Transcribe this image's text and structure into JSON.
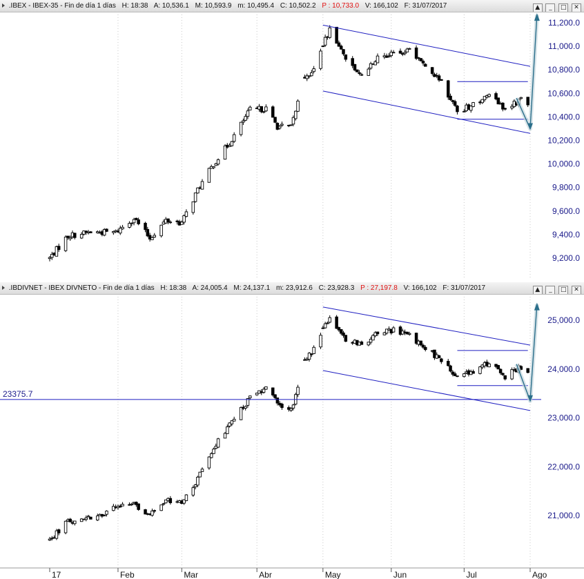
{
  "top_panel": {
    "title_fields": [
      ".IBEX - IBEX-35 - Fin de día 1 días",
      "H: 18:38",
      "A: 10,536.1",
      "M: 10,593.9",
      "m: 10,495.4",
      "C: 10,502.2"
    ],
    "title_red": "P : 10,733.0",
    "title_tail": [
      "V: 166,102",
      "F: 31/07/2017"
    ],
    "window_buttons": [
      "▲",
      "_",
      "□",
      "✕"
    ]
  },
  "bottom_panel": {
    "title_fields": [
      ".IBDIVNET - IBEX DIVNETO - Fin de día 1 días",
      "H: 18:38",
      "A: 24,005.4",
      "M: 24,137.1",
      "m: 23,912.6",
      "C: 23,928.3"
    ],
    "title_red": "P : 27,197.8",
    "title_tail": [
      "V: 166,102",
      "F: 31/07/2017"
    ],
    "window_buttons": [
      "▲",
      "_",
      "□",
      "✕"
    ]
  },
  "x_axis": {
    "labels": [
      {
        "text": "17",
        "date": "2017-01-02"
      },
      {
        "text": "Feb",
        "date": "2017-02-01"
      },
      {
        "text": "Mar",
        "date": "2017-03-01"
      },
      {
        "text": "Abr",
        "date": "2017-04-03"
      },
      {
        "text": "May",
        "date": "2017-05-02"
      },
      {
        "text": "Jun",
        "date": "2017-06-01"
      },
      {
        "text": "Jul",
        "date": "2017-07-03"
      },
      {
        "text": "Ago",
        "date": "2017-08-01"
      }
    ]
  },
  "colors": {
    "candle": "#000000",
    "channel": "#1c1cc0",
    "arrow": "#2a6e8a",
    "axis_text": "#1a1a8a",
    "grid": "#c8c8c8",
    "title_red": "#e01010"
  },
  "chart_data": [
    {
      "type": "candlestick",
      "symbol": ".IBEX",
      "name": "IBEX-35",
      "ylim": [
        9100,
        11300
      ],
      "yticks": [
        9200,
        9400,
        9600,
        9800,
        10000,
        10200,
        10400,
        10600,
        10800,
        11000,
        11200
      ],
      "ytick_labels": [
        "9,200.0",
        "9,400.0",
        "9,600.0",
        "9,800.0",
        "10,000.0",
        "10,200.0",
        "10,400.0",
        "10,600.0",
        "10,800.0",
        "11,000.0",
        "11,200.0"
      ],
      "anchors": [
        {
          "date": "2017-01-02",
          "value": 9200
        },
        {
          "date": "2017-01-10",
          "value": 9390
        },
        {
          "date": "2017-01-20",
          "value": 9420
        },
        {
          "date": "2017-01-31",
          "value": 9420
        },
        {
          "date": "2017-02-08",
          "value": 9540
        },
        {
          "date": "2017-02-15",
          "value": 9370
        },
        {
          "date": "2017-02-22",
          "value": 9520
        },
        {
          "date": "2017-03-01",
          "value": 9500
        },
        {
          "date": "2017-03-08",
          "value": 9780
        },
        {
          "date": "2017-03-15",
          "value": 10000
        },
        {
          "date": "2017-03-22",
          "value": 10180
        },
        {
          "date": "2017-03-31",
          "value": 10460
        },
        {
          "date": "2017-04-07",
          "value": 10470
        },
        {
          "date": "2017-04-12",
          "value": 10320
        },
        {
          "date": "2017-04-18",
          "value": 10310
        },
        {
          "date": "2017-04-24",
          "value": 10740
        },
        {
          "date": "2017-04-28",
          "value": 10800
        },
        {
          "date": "2017-05-05",
          "value": 11150
        },
        {
          "date": "2017-05-12",
          "value": 10900
        },
        {
          "date": "2017-05-19",
          "value": 10750
        },
        {
          "date": "2017-05-26",
          "value": 10920
        },
        {
          "date": "2017-06-02",
          "value": 10940
        },
        {
          "date": "2017-06-09",
          "value": 10960
        },
        {
          "date": "2017-06-16",
          "value": 10840
        },
        {
          "date": "2017-06-23",
          "value": 10700
        },
        {
          "date": "2017-06-30",
          "value": 10450
        },
        {
          "date": "2017-07-07",
          "value": 10500
        },
        {
          "date": "2017-07-14",
          "value": 10600
        },
        {
          "date": "2017-07-21",
          "value": 10460
        },
        {
          "date": "2017-07-28",
          "value": 10550
        },
        {
          "date": "2017-07-31",
          "value": 10502
        }
      ],
      "gaps": [
        {
          "from": "2017-04-21",
          "to": "2017-04-24"
        },
        {
          "from": "2017-04-28",
          "to": "2017-05-02"
        }
      ],
      "channel": {
        "upper": [
          [
            "2017-05-02",
            11180
          ],
          [
            "2017-08-01",
            10830
          ]
        ],
        "lower": [
          [
            "2017-05-02",
            10620
          ],
          [
            "2017-08-01",
            10260
          ]
        ]
      },
      "range_box": {
        "top": [
          [
            "2017-06-30",
            10700
          ],
          [
            "2017-07-31",
            10700
          ]
        ],
        "bottom": [
          [
            "2017-06-30",
            10380
          ],
          [
            "2017-07-31",
            10380
          ]
        ]
      },
      "arrow_path": [
        [
          "2017-07-26",
          10560
        ],
        [
          "2017-08-01",
          10300
        ],
        [
          "2017-08-04",
          11270
        ]
      ]
    },
    {
      "type": "candlestick",
      "symbol": ".IBDIVNET",
      "name": "IBEX DIVNETO",
      "ylim": [
        20500,
        25400
      ],
      "yticks": [
        21000,
        22000,
        23000,
        24000,
        25000
      ],
      "ytick_labels": [
        "21,000.0",
        "22,000.0",
        "23,000.0",
        "24,000.0",
        "25,000.0"
      ],
      "hline": {
        "value": 23375.7,
        "label": "23375.7"
      },
      "anchors": [
        {
          "date": "2017-01-02",
          "value": 20500
        },
        {
          "date": "2017-01-10",
          "value": 20900
        },
        {
          "date": "2017-01-20",
          "value": 20950
        },
        {
          "date": "2017-01-31",
          "value": 21150
        },
        {
          "date": "2017-02-08",
          "value": 21250
        },
        {
          "date": "2017-02-15",
          "value": 21000
        },
        {
          "date": "2017-02-22",
          "value": 21300
        },
        {
          "date": "2017-03-01",
          "value": 21250
        },
        {
          "date": "2017-03-08",
          "value": 21750
        },
        {
          "date": "2017-03-15",
          "value": 22400
        },
        {
          "date": "2017-03-22",
          "value": 22850
        },
        {
          "date": "2017-03-31",
          "value": 23400
        },
        {
          "date": "2017-04-07",
          "value": 23600
        },
        {
          "date": "2017-04-12",
          "value": 23300
        },
        {
          "date": "2017-04-18",
          "value": 23150
        },
        {
          "date": "2017-04-24",
          "value": 24150
        },
        {
          "date": "2017-04-28",
          "value": 24400
        },
        {
          "date": "2017-05-05",
          "value": 25100
        },
        {
          "date": "2017-05-12",
          "value": 24600
        },
        {
          "date": "2017-05-19",
          "value": 24500
        },
        {
          "date": "2017-05-26",
          "value": 24750
        },
        {
          "date": "2017-06-02",
          "value": 24800
        },
        {
          "date": "2017-06-09",
          "value": 24700
        },
        {
          "date": "2017-06-16",
          "value": 24400
        },
        {
          "date": "2017-06-23",
          "value": 24200
        },
        {
          "date": "2017-06-30",
          "value": 23800
        },
        {
          "date": "2017-07-07",
          "value": 23950
        },
        {
          "date": "2017-07-14",
          "value": 24150
        },
        {
          "date": "2017-07-21",
          "value": 23850
        },
        {
          "date": "2017-07-28",
          "value": 24050
        },
        {
          "date": "2017-07-31",
          "value": 23928
        }
      ],
      "gaps": [
        {
          "from": "2017-04-21",
          "to": "2017-04-24"
        },
        {
          "from": "2017-04-28",
          "to": "2017-05-02"
        }
      ],
      "channel": {
        "upper": [
          [
            "2017-05-02",
            25270
          ],
          [
            "2017-08-01",
            24490
          ]
        ],
        "lower": [
          [
            "2017-05-02",
            23970
          ],
          [
            "2017-08-01",
            23150
          ]
        ]
      },
      "range_box": {
        "top": [
          [
            "2017-06-30",
            24380
          ],
          [
            "2017-07-31",
            24380
          ]
        ],
        "bottom": [
          [
            "2017-06-30",
            23660
          ],
          [
            "2017-07-31",
            23660
          ]
        ]
      },
      "arrow_path": [
        [
          "2017-07-26",
          24100
        ],
        [
          "2017-08-01",
          23350
        ],
        [
          "2017-08-04",
          25330
        ]
      ]
    }
  ]
}
